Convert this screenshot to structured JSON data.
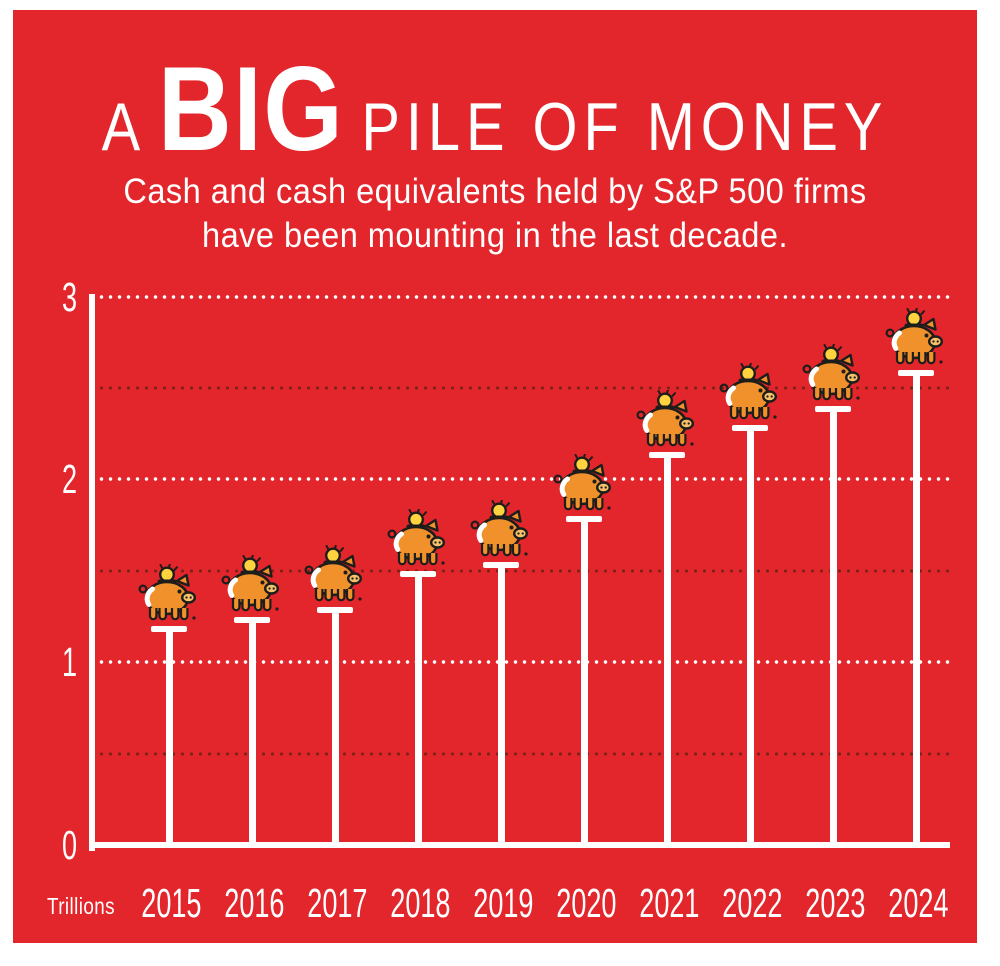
{
  "header": {
    "title_prefix": "A",
    "title_emphasis": "BIG",
    "title_suffix": "PILE OF MONEY",
    "subtitle_line1": "Cash and cash equivalents held by S&P 500 firms",
    "subtitle_line2": "have been mounting in the last decade."
  },
  "chart_data": {
    "type": "lollipop",
    "title": "A BIG PILE OF MONEY",
    "subtitle": "Cash and cash equivalents held by S&P 500 firms have been mounting in the last decade.",
    "unit_label": "Trillions",
    "categories": [
      "2015",
      "2016",
      "2017",
      "2018",
      "2019",
      "2020",
      "2021",
      "2022",
      "2023",
      "2024"
    ],
    "values": [
      1.2,
      1.25,
      1.3,
      1.5,
      1.55,
      1.8,
      2.15,
      2.3,
      2.4,
      2.6
    ],
    "ylim": [
      0,
      3
    ],
    "y_ticks": [
      0,
      1,
      2,
      3
    ],
    "major_gridlines": [
      1,
      2,
      3
    ],
    "minor_gridlines": [
      0.5,
      1.5,
      2.5
    ],
    "grid_style": "dotted",
    "legend": "none",
    "marker": "piggy-bank-icon",
    "colors": {
      "canvas_red": "#E2262B",
      "axis_white": "#FFFFFF",
      "minor_grid": "#7E211B",
      "pig_orange": "#F0912C",
      "pig_snout": "#F6C168",
      "coin_gold": "#FFD23F",
      "outline": "#1D1D1B"
    }
  }
}
